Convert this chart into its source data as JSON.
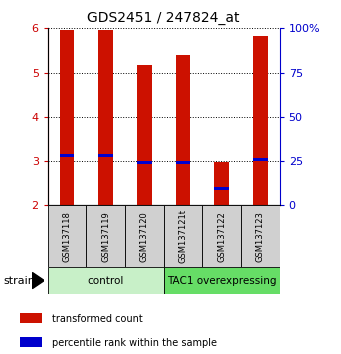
{
  "title": "GDS2451 / 247824_at",
  "samples": [
    "GSM137118",
    "GSM137119",
    "GSM137120",
    "GSM137121t",
    "GSM137122",
    "GSM137123"
  ],
  "red_bar_bottom": 2.0,
  "red_bar_tops": [
    5.97,
    5.97,
    5.17,
    5.4,
    2.97,
    5.83
  ],
  "blue_positions": [
    3.13,
    3.13,
    2.97,
    2.97,
    2.37,
    3.03
  ],
  "ylim_left": [
    2.0,
    6.0
  ],
  "ylim_right": [
    0,
    100
  ],
  "yticks_left": [
    2,
    3,
    4,
    5,
    6
  ],
  "yticks_right": [
    0,
    25,
    50,
    75,
    100
  ],
  "ytick_labels_right": [
    "0",
    "25",
    "50",
    "75",
    "100%"
  ],
  "groups": [
    {
      "label": "control",
      "start": 0,
      "end": 2,
      "color": "#c8f0c8"
    },
    {
      "label": "TAC1 overexpressing",
      "start": 3,
      "end": 5,
      "color": "#66dd66"
    }
  ],
  "legend_items": [
    {
      "color": "#cc1100",
      "label": "transformed count"
    },
    {
      "color": "#0000cc",
      "label": "percentile rank within the sample"
    }
  ],
  "bar_color": "#cc1100",
  "blue_color": "#0000cc",
  "bar_width": 0.38,
  "left_tick_color": "#cc0000",
  "right_tick_color": "#0000cc",
  "strain_label": "strain"
}
